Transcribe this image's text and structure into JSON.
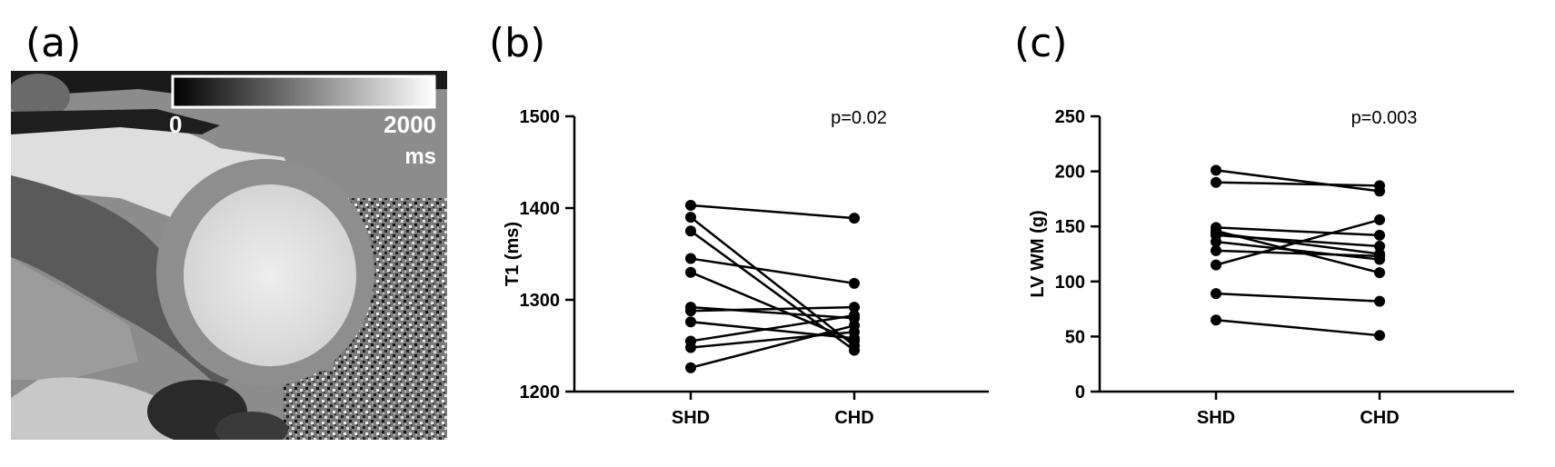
{
  "panels": {
    "a": {
      "label": "(a)",
      "colorbar": {
        "min_label": "0",
        "max_label": "2000",
        "unit": "ms"
      }
    },
    "b": {
      "label": "(b)"
    },
    "c": {
      "label": "(c)"
    }
  },
  "chart_data": [
    {
      "type": "line",
      "categories": [
        "SHD",
        "CHD"
      ],
      "ylabel": "T1 (ms)",
      "ylim": [
        1200,
        1500
      ],
      "yticks": [
        1200,
        1300,
        1400,
        1500
      ],
      "annotation": "p=0.02",
      "pairs": [
        [
          1403,
          1389
        ],
        [
          1390,
          1250
        ],
        [
          1375,
          1245
        ],
        [
          1345,
          1318
        ],
        [
          1330,
          1255
        ],
        [
          1292,
          1280
        ],
        [
          1288,
          1292
        ],
        [
          1276,
          1258
        ],
        [
          1255,
          1283
        ],
        [
          1248,
          1265
        ],
        [
          1226,
          1272
        ]
      ]
    },
    {
      "type": "line",
      "categories": [
        "SHD",
        "CHD"
      ],
      "ylabel": "LV WM (g)",
      "ylim": [
        0,
        250
      ],
      "yticks": [
        0,
        50,
        100,
        150,
        200,
        250
      ],
      "annotation": "p=0.003",
      "pairs": [
        [
          201,
          182
        ],
        [
          190,
          187
        ],
        [
          149,
          142
        ],
        [
          146,
          108
        ],
        [
          144,
          125
        ],
        [
          142,
          132
        ],
        [
          136,
          120
        ],
        [
          128,
          123
        ],
        [
          115,
          156
        ],
        [
          89,
          82
        ],
        [
          65,
          51
        ]
      ]
    }
  ]
}
